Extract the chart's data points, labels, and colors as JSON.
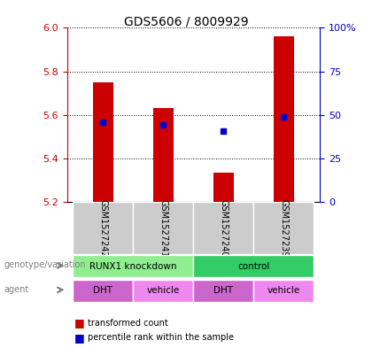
{
  "title": "GDS5606 / 8009929",
  "samples": [
    "GSM1527242",
    "GSM1527241",
    "GSM1527240",
    "GSM1527239"
  ],
  "bar_values": [
    5.75,
    5.63,
    5.335,
    5.96
  ],
  "bar_base": 5.2,
  "percentile_values": [
    5.565,
    5.555,
    5.525,
    5.59
  ],
  "ylim": [
    5.2,
    6.0
  ],
  "yticks": [
    5.2,
    5.4,
    5.6,
    5.8,
    6.0
  ],
  "y2ticks": [
    0,
    25,
    50,
    75,
    100
  ],
  "y2labels": [
    "0",
    "25",
    "50",
    "75",
    "100%"
  ],
  "bar_color": "#cc0000",
  "percentile_color": "#0000cc",
  "left_label_color": "#cc0000",
  "right_label_color": "#0000cc",
  "genotype_groups": [
    {
      "label": "RUNX1 knockdown",
      "cols": [
        0,
        1
      ],
      "color": "#90EE90"
    },
    {
      "label": "control",
      "cols": [
        2,
        3
      ],
      "color": "#33cc66"
    }
  ],
  "agent_labels": [
    "DHT",
    "vehicle",
    "DHT",
    "vehicle"
  ],
  "agent_colors": [
    "#cc66cc",
    "#ee88ee",
    "#cc66cc",
    "#ee88ee"
  ],
  "sample_bg_color": "#cccccc",
  "legend_red_label": "transformed count",
  "legend_blue_label": "percentile rank within the sample",
  "bar_width": 0.35
}
